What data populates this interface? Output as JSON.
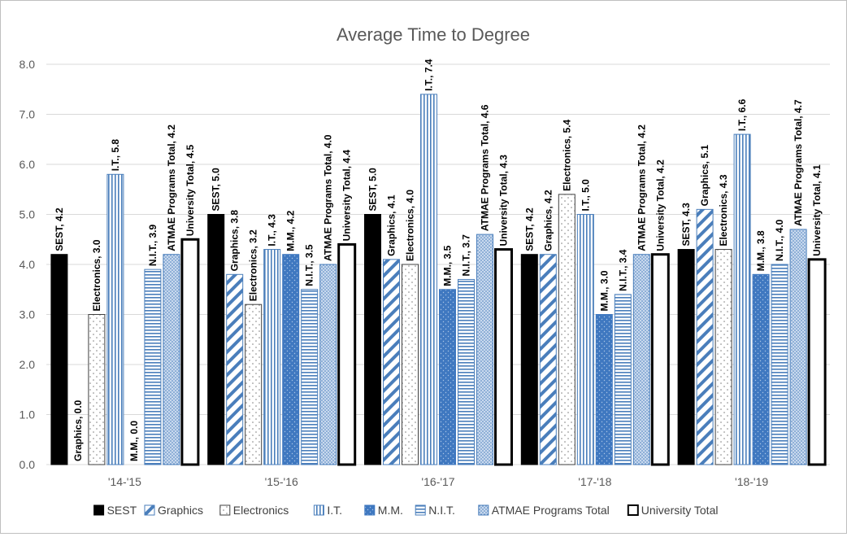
{
  "chart_data": {
    "type": "bar",
    "title": "Average Time to Degree",
    "xlabel": "",
    "ylabel": "",
    "ylim": [
      0,
      8
    ],
    "y_ticks": [
      "0.0",
      "1.0",
      "2.0",
      "3.0",
      "4.0",
      "5.0",
      "6.0",
      "7.0",
      "8.0"
    ],
    "grid": true,
    "legend_position": "bottom",
    "categories": [
      "'14-'15",
      "'15-'16",
      "'16-'17",
      "'17-'18",
      "'18-'19"
    ],
    "series": [
      {
        "name": "SEST",
        "values": [
          4.2,
          5.0,
          5.0,
          4.2,
          4.3
        ],
        "labels": [
          "SEST, 4.2",
          "SEST, 5.0",
          "SEST, 5.0",
          "SEST, 4.2",
          "SEST, 4.3"
        ]
      },
      {
        "name": "Graphics",
        "values": [
          0.0,
          3.8,
          4.1,
          4.2,
          5.1
        ],
        "labels": [
          "Graphics, 0.0",
          "Graphics, 3.8",
          "Graphics, 4.1",
          "Graphics, 4.2",
          "Graphics, 5.1"
        ]
      },
      {
        "name": "Electronics",
        "values": [
          3.0,
          3.2,
          4.0,
          5.4,
          4.3
        ],
        "labels": [
          "Electronics, 3.0",
          "Electronics, 3.2",
          "Electronics, 4.0",
          "Electronics, 5.4",
          "Electronics, 4.3"
        ]
      },
      {
        "name": "I.T.",
        "values": [
          5.8,
          4.3,
          7.4,
          5.0,
          6.6
        ],
        "labels": [
          "I.T., 5.8",
          "I.T., 4.3",
          "I.T., 7.4",
          "I.T., 5.0",
          "I.T., 6.6"
        ]
      },
      {
        "name": "M.M.",
        "values": [
          0.0,
          4.2,
          3.5,
          3.0,
          3.8
        ],
        "labels": [
          "M.M., 0.0",
          "M.M., 4.2",
          "M.M., 3.5",
          "M.M., 3.0",
          "M.M., 3.8"
        ]
      },
      {
        "name": "N.I.T.",
        "values": [
          3.9,
          3.5,
          3.7,
          3.4,
          4.0
        ],
        "labels": [
          "N.I.T., 3.9",
          "N.I.T., 3.5",
          "N.I.T., 3.7",
          "N.I.T., 3.4",
          "N.I.T., 4.0"
        ]
      },
      {
        "name": "ATMAE Programs Total",
        "values": [
          4.2,
          4.0,
          4.6,
          4.2,
          4.7
        ],
        "labels": [
          "ATMAE Programs Total, 4.2",
          "ATMAE Programs Total, 4.0",
          "ATMAE Programs Total, 4.6",
          "ATMAE Programs Total, 4.2",
          "ATMAE Programs Total, 4.7"
        ]
      },
      {
        "name": "University Total",
        "values": [
          4.5,
          4.4,
          4.3,
          4.2,
          4.1
        ],
        "labels": [
          "University Total, 4.5",
          "University Total, 4.4",
          "University Total, 4.3",
          "University Total, 4.2",
          "University Total, 4.1"
        ]
      }
    ],
    "colors": {
      "SEST": "#000000",
      "Graphics": "#4a7ebb",
      "Electronics": "#7f7f7f",
      "I.T.": "#4a7ebb",
      "M.M.": "#3f78c0",
      "N.I.T.": "#4a7ebb",
      "ATMAE Programs Total": "#4a7ebb",
      "University Total": "#000000",
      "grid": "#d9d9d9",
      "axis_text": "#595959"
    }
  }
}
